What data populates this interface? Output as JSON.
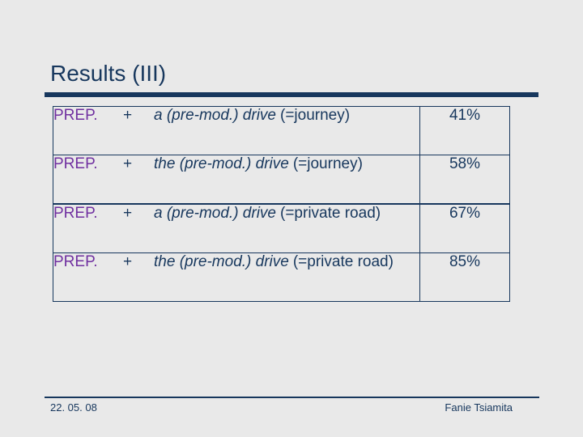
{
  "title": "Results (III)",
  "colors": {
    "navy": "#17375D",
    "purple": "#7030A0",
    "background": "#E9E9E9"
  },
  "table": {
    "rows": [
      {
        "label": "PREP.",
        "plus": "+",
        "phrase_italic": "a (pre-mod.) drive",
        "phrase_rest": "(=journey)",
        "value": "41%"
      },
      {
        "label": "PREP.",
        "plus": "+",
        "phrase_italic": "the (pre-mod.) drive",
        "phrase_rest": "(=journey)",
        "value": "58%"
      },
      {
        "label": "PREP.",
        "plus": "+",
        "phrase_italic": "a (pre-mod.) drive",
        "phrase_rest": "(=private road)",
        "value": "67%"
      },
      {
        "label": "PREP.",
        "plus": "+",
        "phrase_italic": "the (pre-mod.) drive",
        "phrase_rest": "(=private road)",
        "value": "85%"
      }
    ]
  },
  "footer": {
    "date": "22. 05. 08",
    "author": "Fanie Tsiamita"
  }
}
